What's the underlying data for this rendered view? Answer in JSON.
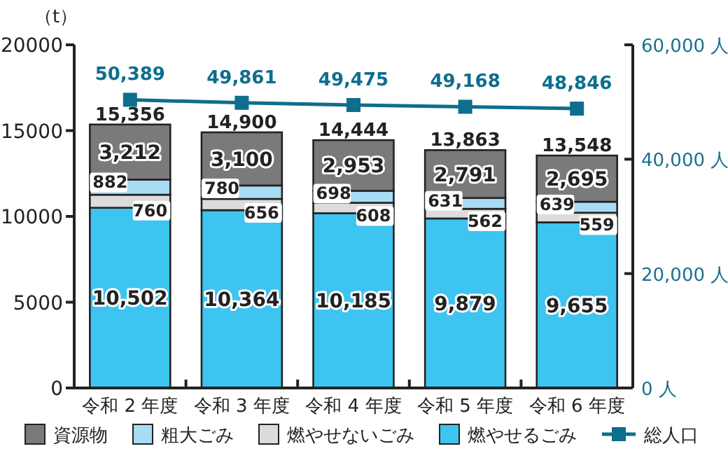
{
  "chart_data": {
    "type": "bar",
    "stacked": true,
    "ylabel": "（t）",
    "legend": "bottom",
    "marker": "square",
    "categories": [
      "令和 2 年度",
      "令和 3 年度",
      "令和 4 年度",
      "令和 5 年度",
      "令和 6 年度"
    ],
    "ylim": [
      0,
      20000
    ],
    "yticks": [
      0,
      5000,
      10000,
      15000,
      20000
    ],
    "y2lim": [
      0,
      60000
    ],
    "y2ticks": [
      {
        "value": 0,
        "label": "0 人"
      },
      {
        "value": 20000,
        "label": "20,000 人"
      },
      {
        "value": 40000,
        "label": "40,000 人"
      },
      {
        "value": 60000,
        "label": "60,000 人"
      }
    ],
    "series": [
      {
        "name": "燃やせるごみ",
        "color": "#3ec4f0",
        "values": [
          10502,
          10364,
          10185,
          9879,
          9655
        ],
        "value_labels": [
          "10,502",
          "10,364",
          "10,185",
          "9,879",
          "9,655"
        ]
      },
      {
        "name": "燃やせないごみ",
        "color": "#dcdcdc",
        "values": [
          760,
          656,
          608,
          562,
          559
        ],
        "value_labels": [
          "760",
          "656",
          "608",
          "562",
          "559"
        ]
      },
      {
        "name": "粗大ごみ",
        "color": "#a8dcf5",
        "values": [
          882,
          780,
          698,
          631,
          639
        ],
        "value_labels": [
          "882",
          "780",
          "698",
          "631",
          "639"
        ]
      },
      {
        "name": "資源物",
        "color": "#7a7a7a",
        "values": [
          3212,
          3100,
          2953,
          2791,
          2695
        ],
        "value_labels": [
          "3,212",
          "3,100",
          "2,953",
          "2,791",
          "2,695"
        ]
      },
      {
        "name": "総人口",
        "type": "line",
        "axis": "y2",
        "color": "#0e6e8e",
        "values": [
          50389,
          49861,
          49475,
          49168,
          48846
        ],
        "value_labels": [
          "50,389",
          "49,861",
          "49,475",
          "49,168",
          "48,846"
        ]
      }
    ],
    "totals": [
      "15,356",
      "14,900",
      "14,444",
      "13,863",
      "13,548"
    ]
  }
}
